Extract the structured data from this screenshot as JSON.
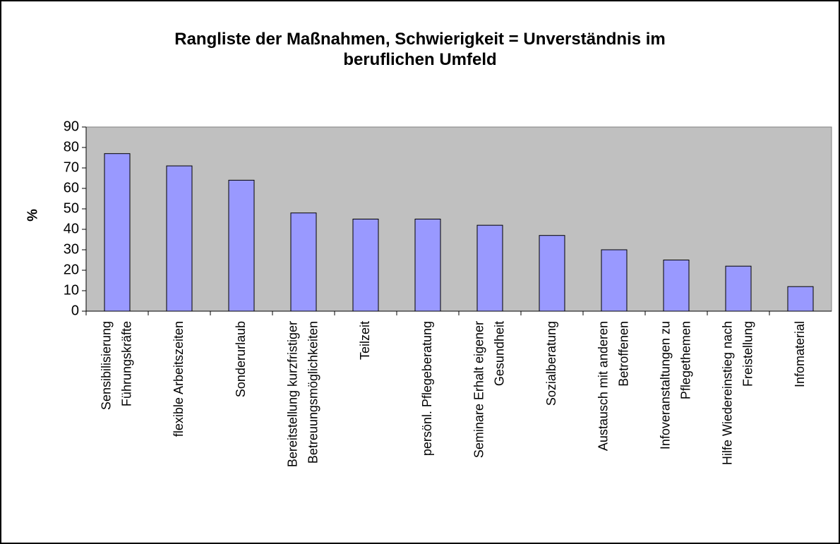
{
  "chart_data": {
    "type": "bar",
    "title": "Rangliste der Maßnahmen, Schwierigkeit = Unverständnis im\nberuflichen Umfeld",
    "y_label": "%",
    "categories": [
      "Sensibilisierung\nFührungskräfte",
      "flexible Arbeitszeiten",
      "Sonderurlaub",
      "Bereitstellung kurzfristiger\nBetreuungsmöglichkeiten",
      "Teilzeit",
      "persönl. Pflegeberatung",
      "Seminare Erhalt eigener\nGesundheit",
      "Sozialberatung",
      "Austausch mit anderen\nBetroffenen",
      "Infoveranstaltungen zu\nPflegethemen",
      "Hilfe Wiedereinstieg nach\nFreistellung",
      "Infomaterial"
    ],
    "values": [
      77,
      71,
      64,
      48,
      45,
      45,
      42,
      37,
      30,
      25,
      22,
      12
    ],
    "color": "#9999ff",
    "plot_background": "#c0c0c0",
    "ylim": [
      0,
      90
    ],
    "yticks": [
      0,
      10,
      20,
      30,
      40,
      50,
      60,
      70,
      80,
      90
    ],
    "grid": false
  }
}
